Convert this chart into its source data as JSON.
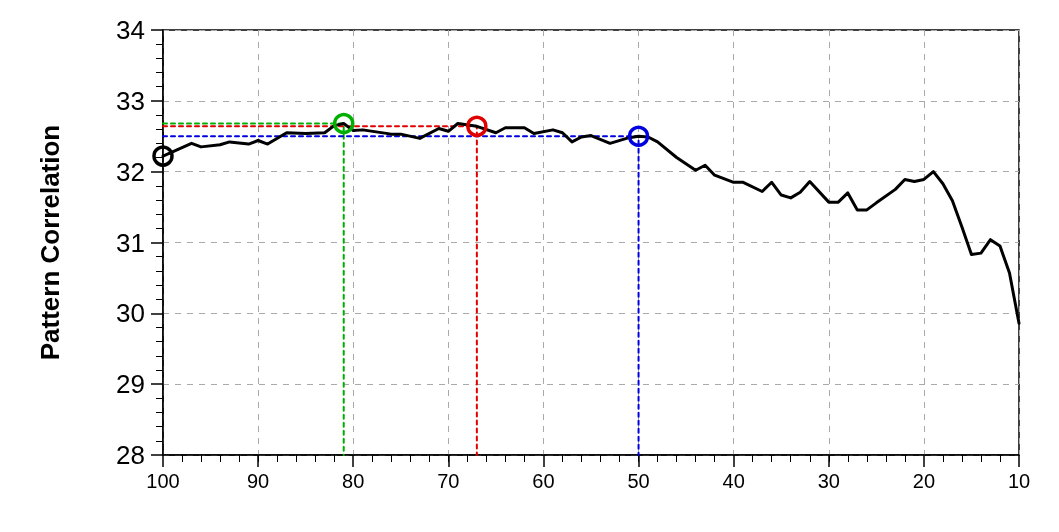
{
  "chart_data": {
    "type": "line",
    "ylabel": "Pattern Correlation",
    "xlim": [
      100,
      10
    ],
    "ylim": [
      28,
      34
    ],
    "xticks": [
      100,
      90,
      80,
      70,
      60,
      50,
      40,
      30,
      20,
      10
    ],
    "yticks": [
      28,
      29,
      30,
      31,
      32,
      33,
      34
    ],
    "grid": true,
    "series": [
      {
        "type": "line",
        "color": "#00b000",
        "line_style": "dashed",
        "marker": "none",
        "x": [
          100,
          81,
          81
        ],
        "values": [
          32.68,
          32.68,
          28
        ]
      },
      {
        "type": "line",
        "color": "#e00000",
        "line_style": "dashed",
        "marker": "none",
        "x": [
          100,
          67,
          67
        ],
        "values": [
          32.64,
          32.64,
          28
        ]
      },
      {
        "type": "line",
        "color": "#0000e0",
        "line_style": "dashed",
        "marker": "none",
        "x": [
          100,
          50,
          50
        ],
        "values": [
          32.5,
          32.5,
          28
        ]
      },
      {
        "color": "#000000",
        "line_style": "solid",
        "marker": "none",
        "x": [
          100,
          97,
          96,
          94,
          93,
          91,
          90,
          89,
          87,
          85,
          83,
          82,
          81,
          80,
          79,
          76,
          75,
          73,
          71,
          70,
          69,
          67,
          65,
          64,
          62,
          61,
          59,
          58,
          57,
          56,
          55,
          53,
          51,
          50,
          49,
          48,
          46,
          44,
          43,
          42,
          40,
          39,
          37,
          36,
          35,
          34,
          33,
          32,
          30,
          29,
          28,
          27,
          26,
          25,
          23,
          22,
          21,
          20,
          19,
          18,
          17,
          16,
          15,
          14,
          13,
          12,
          11,
          10
        ],
        "values": [
          32.22,
          32.4,
          32.35,
          32.38,
          32.42,
          32.39,
          32.44,
          32.39,
          32.55,
          32.54,
          32.55,
          32.65,
          32.68,
          32.58,
          32.59,
          32.53,
          32.53,
          32.47,
          32.61,
          32.57,
          32.68,
          32.64,
          32.55,
          32.62,
          32.62,
          32.54,
          32.59,
          32.55,
          32.42,
          32.49,
          32.51,
          32.4,
          32.48,
          32.5,
          32.49,
          32.42,
          32.2,
          32.02,
          32.09,
          31.95,
          31.85,
          31.85,
          31.72,
          31.85,
          31.67,
          31.63,
          31.71,
          31.86,
          31.57,
          31.57,
          31.7,
          31.46,
          31.46,
          31.56,
          31.75,
          31.89,
          31.86,
          31.89,
          32.0,
          31.83,
          31.59,
          31.22,
          30.83,
          30.85,
          31.04,
          30.95,
          30.57,
          29.86
        ]
      },
      {
        "type": "scatter",
        "color": "#000000",
        "marker": "circle",
        "x": [
          100
        ],
        "values": [
          32.22
        ]
      },
      {
        "type": "scatter",
        "color": "#00b000",
        "marker": "circle",
        "x": [
          81
        ],
        "values": [
          32.68
        ]
      },
      {
        "type": "scatter",
        "color": "#e00000",
        "marker": "circle",
        "x": [
          67
        ],
        "values": [
          32.64
        ]
      },
      {
        "type": "scatter",
        "color": "#0000e0",
        "marker": "circle",
        "x": [
          50
        ],
        "values": [
          32.5
        ]
      }
    ]
  }
}
